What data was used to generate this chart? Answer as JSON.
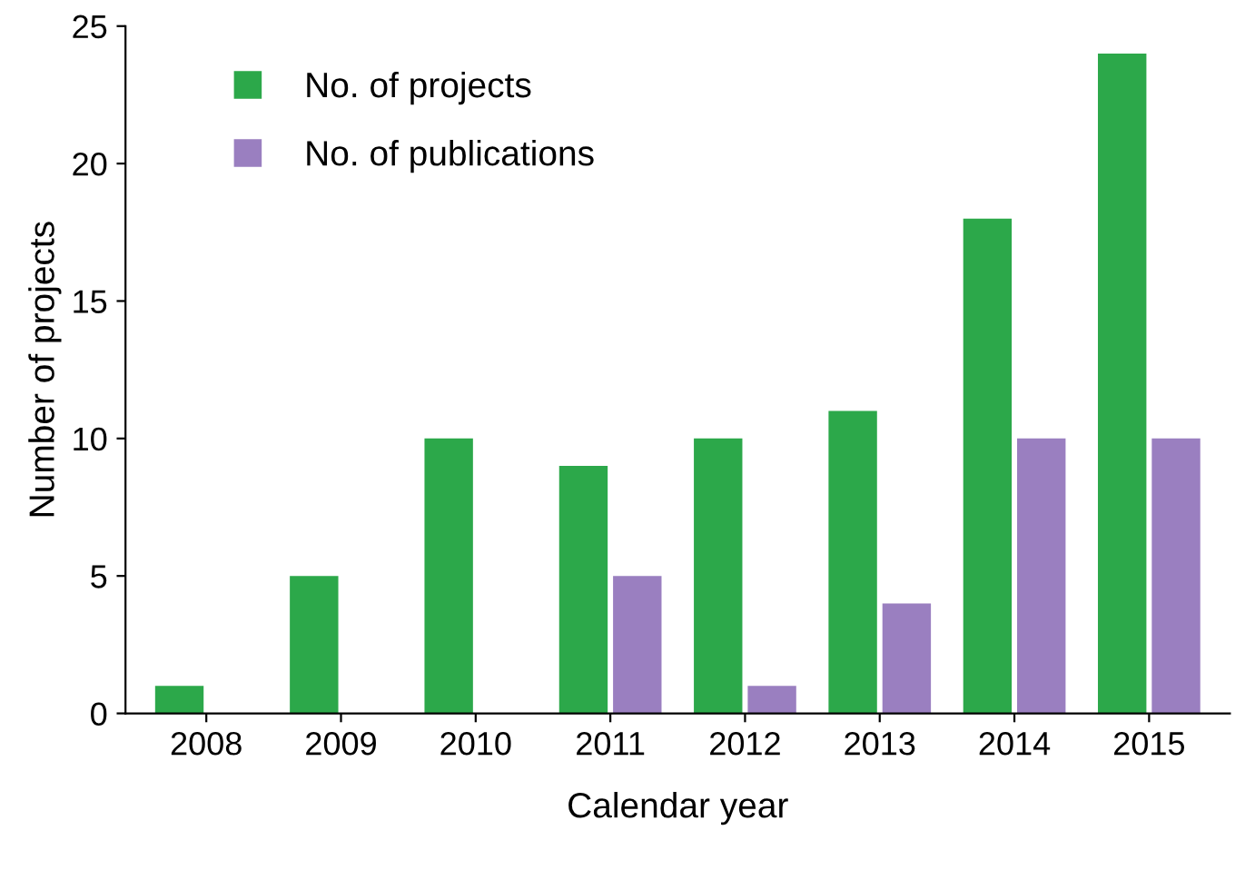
{
  "chart_data": {
    "type": "bar",
    "xlabel": "Calendar year",
    "ylabel": "Number of projects",
    "categories": [
      "2008",
      "2009",
      "2010",
      "2011",
      "2012",
      "2013",
      "2014",
      "2015"
    ],
    "series": [
      {
        "name": "No. of projects",
        "color": "#2ca84a",
        "values": [
          1,
          5,
          10,
          9,
          10,
          11,
          18,
          24
        ]
      },
      {
        "name": "No. of publications",
        "color": "#9a7fc0",
        "values": [
          0,
          0,
          0,
          5,
          1,
          4,
          10,
          10
        ]
      }
    ],
    "ylim": [
      0,
      25
    ],
    "yticks": [
      0,
      5,
      10,
      15,
      20,
      25
    ],
    "grid": false,
    "legend": "top left"
  }
}
